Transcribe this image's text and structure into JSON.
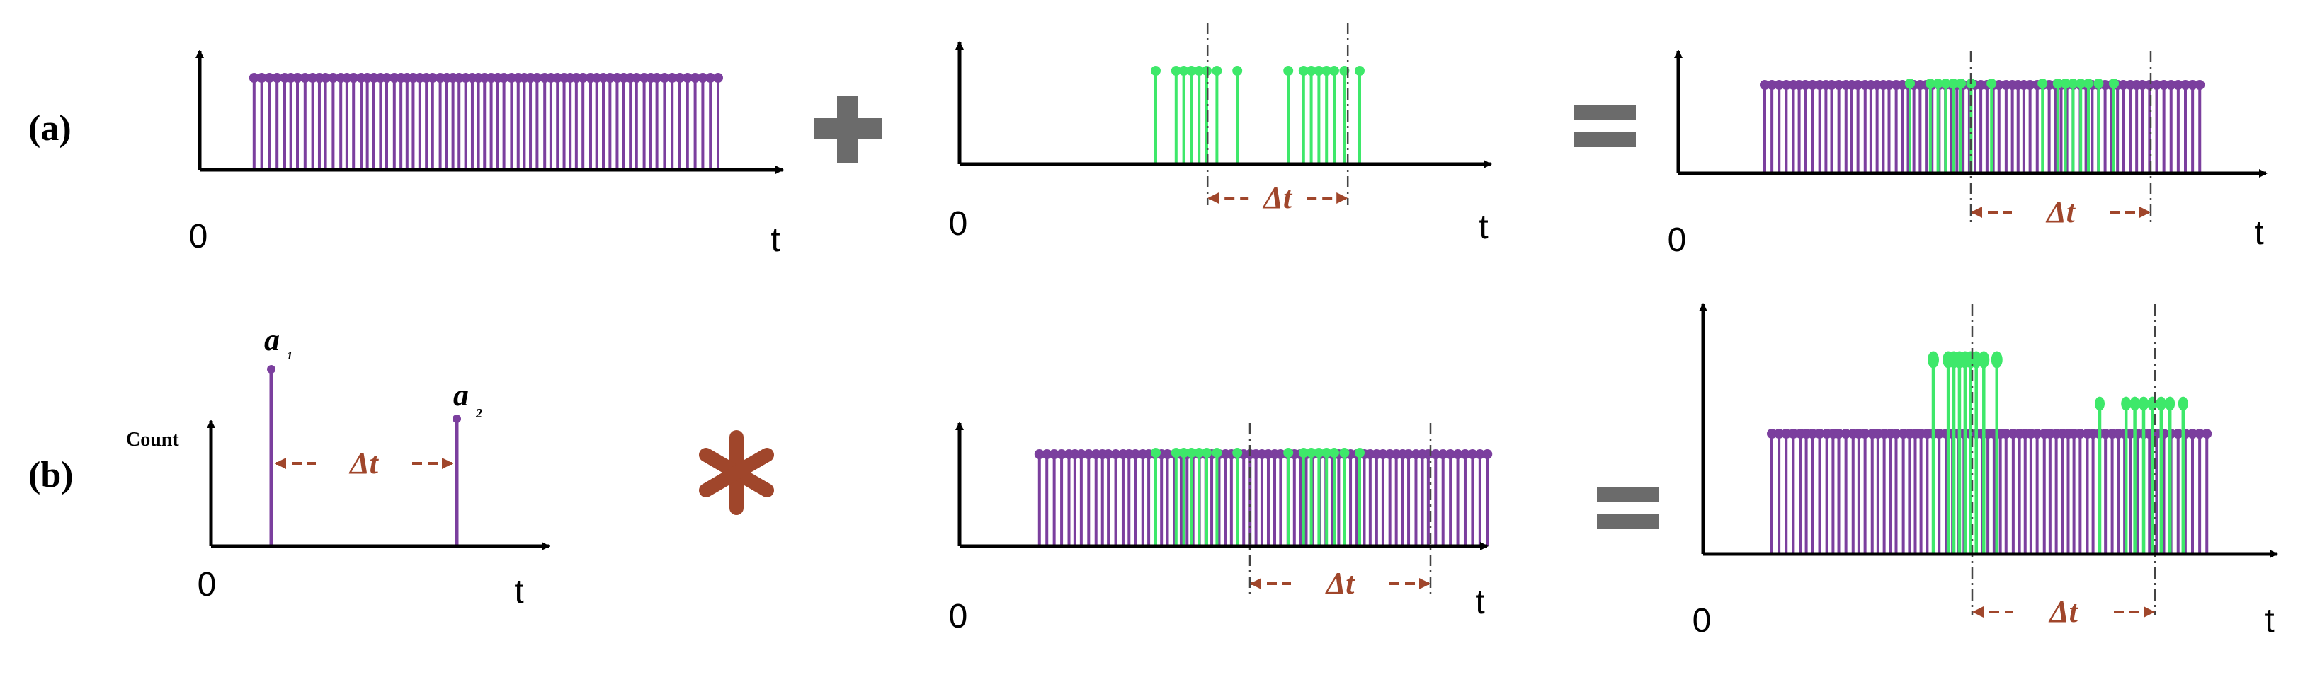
{
  "row_a_label": "(a)",
  "row_b_label": "(b)",
  "axis_origin": "0",
  "axis_time": "t",
  "delta_t": "Δt",
  "dashes": "---",
  "plus_sign": "+",
  "equals_sign": "=",
  "convolve_sign": "*",
  "count_label": "Count",
  "peak_labels": {
    "a1": "a",
    "a1_sub": "1",
    "a2": "a",
    "a2_sub": "2"
  },
  "colors": {
    "purple": "#7b3f9e",
    "green": "#3ee86a",
    "brown": "#a0462b",
    "gray": "#6b6b6b",
    "axis": "#000000"
  },
  "chart_data": {
    "type": "stem",
    "time_unit": "arbitrary",
    "background_events_t": [
      0.04,
      0.055,
      0.07,
      0.085,
      0.1,
      0.112,
      0.125,
      0.14,
      0.155,
      0.168,
      0.18,
      0.195,
      0.21,
      0.222,
      0.235,
      0.25,
      0.262,
      0.275,
      0.288,
      0.3,
      0.315,
      0.328,
      0.34,
      0.352,
      0.365,
      0.378,
      0.39,
      0.405,
      0.418,
      0.43,
      0.442,
      0.455,
      0.468,
      0.48,
      0.492,
      0.505,
      0.518,
      0.53,
      0.545,
      0.558,
      0.57,
      0.582,
      0.595,
      0.61,
      0.622,
      0.635,
      0.648,
      0.66,
      0.672,
      0.685,
      0.7,
      0.712,
      0.725,
      0.738,
      0.752,
      0.765,
      0.778,
      0.79,
      0.805,
      0.818,
      0.83,
      0.845,
      0.86,
      0.875,
      0.89,
      0.905,
      0.92,
      0.935,
      0.95
    ],
    "signal_events_t": [
      0.35,
      0.39,
      0.405,
      0.42,
      0.435,
      0.45,
      0.47,
      0.51,
      0.61,
      0.64,
      0.655,
      0.67,
      0.685,
      0.7,
      0.72,
      0.75
    ],
    "signal_window_start_t": 0.41,
    "signal_window_end_t": 0.685,
    "kernel_peaks": [
      {
        "name": "a1",
        "t": 0.25,
        "height": 1.0
      },
      {
        "name": "a2",
        "t": 0.7,
        "height": 0.72
      }
    ],
    "correlation_background_height": 1.0,
    "correlation_peak_height": 1.55,
    "correlation_peak_height_secondary": 1.22
  }
}
